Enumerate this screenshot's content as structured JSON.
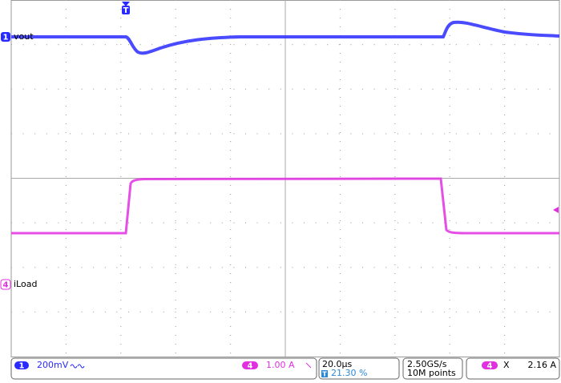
{
  "channels": [
    {
      "number": "1",
      "label": "vout"
    },
    {
      "number": "4",
      "label": "iLoad"
    }
  ],
  "trigger_marker": "T",
  "status_bar": {
    "ch1": {
      "number": "1",
      "scale": "200mV"
    },
    "ch4": {
      "number": "4",
      "scale": "1.00 A"
    },
    "timebase": {
      "scale": "20.0µs",
      "trigger_icon": "T",
      "trigger_position": "21.30 %"
    },
    "acquisition": {
      "sample_rate": "2.50GS/s",
      "record_length": "10M points"
    },
    "cursor": {
      "number": "4",
      "symbol": "X",
      "value": "2.16 A"
    }
  }
}
